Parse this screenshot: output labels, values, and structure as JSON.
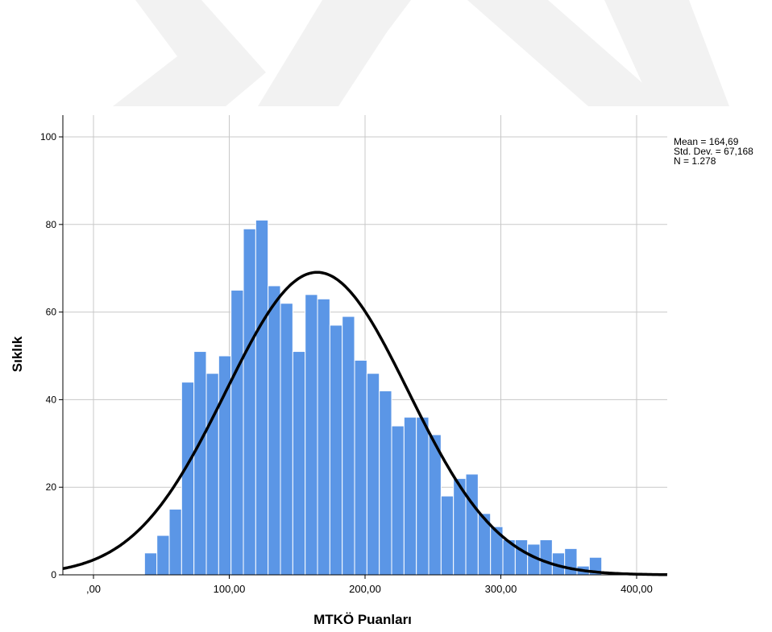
{
  "chart_data": {
    "type": "bar",
    "subtype": "histogram-with-normal-curve",
    "xlabel": "MTKÖ Puanları",
    "ylabel": "Sıklık",
    "xlim": [
      -10,
      420
    ],
    "ylim": [
      0,
      105
    ],
    "xticks": [
      0,
      100,
      200,
      300,
      400
    ],
    "xtick_labels": [
      ",00",
      "100,00",
      "200,00",
      "300,00",
      "400,00"
    ],
    "yticks": [
      0,
      20,
      40,
      60,
      80,
      100
    ],
    "ytick_labels": [
      "0",
      "20",
      "40",
      "60",
      "80",
      "100"
    ],
    "grid": true,
    "bar_color": "#5b96e6",
    "curve_color": "#000000",
    "bin_width": 9.1,
    "bin_start": 37.6,
    "values": [
      5,
      9,
      15,
      44,
      51,
      46,
      50,
      65,
      79,
      81,
      66,
      62,
      51,
      64,
      63,
      57,
      59,
      49,
      46,
      42,
      34,
      36,
      36,
      32,
      18,
      22,
      23,
      14,
      11,
      8,
      8,
      7,
      8,
      5,
      6,
      2,
      4
    ],
    "normal_curve": {
      "mean": 164.69,
      "sd": 67.168,
      "n": 1278
    },
    "stats": {
      "mean": "Mean = 164,69",
      "sd": "Std. Dev. = 67,168",
      "n": "N = 1.278"
    }
  }
}
